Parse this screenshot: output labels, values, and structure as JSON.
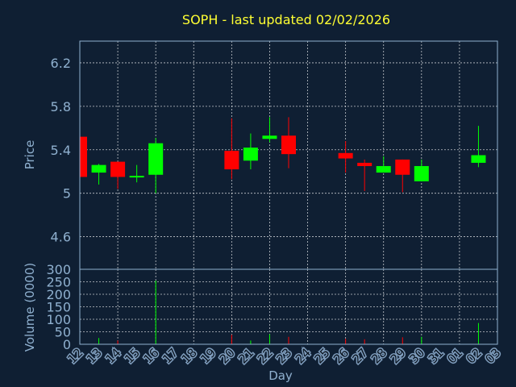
{
  "chart_data": [
    {
      "type": "candlestick",
      "title": "SOPH - last updated 02/02/2026",
      "ylabel": "Price",
      "ylim": [
        4.3,
        6.4
      ],
      "yticks": [
        "4.6",
        "5",
        "5.4",
        "5.8",
        "6.2"
      ],
      "categories": [
        "12",
        "13",
        "14",
        "15",
        "16",
        "17",
        "18",
        "19",
        "20",
        "21",
        "22",
        "23",
        "24",
        "25",
        "26",
        "27",
        "28",
        "29",
        "30",
        "31",
        "01",
        "02",
        "03"
      ],
      "ohlc": [
        {
          "day": "12",
          "open": 5.52,
          "high": 5.52,
          "low": 5.15,
          "close": 5.15
        },
        {
          "day": "13",
          "open": 5.19,
          "high": 5.27,
          "low": 5.08,
          "close": 5.26
        },
        {
          "day": "14",
          "open": 5.29,
          "high": 5.29,
          "low": 5.04,
          "close": 5.15
        },
        {
          "day": "15",
          "open": 5.15,
          "high": 5.26,
          "low": 5.1,
          "close": 5.16
        },
        {
          "day": "16",
          "open": 5.17,
          "high": 5.51,
          "low": 5.0,
          "close": 5.46
        },
        {
          "day": "20",
          "open": 5.39,
          "high": 5.69,
          "low": 5.13,
          "close": 5.22
        },
        {
          "day": "21",
          "open": 5.3,
          "high": 5.55,
          "low": 5.22,
          "close": 5.42
        },
        {
          "day": "22",
          "open": 5.5,
          "high": 5.7,
          "low": 5.47,
          "close": 5.53
        },
        {
          "day": "23",
          "open": 5.53,
          "high": 5.7,
          "low": 5.23,
          "close": 5.36
        },
        {
          "day": "26",
          "open": 5.37,
          "high": 5.48,
          "low": 5.19,
          "close": 5.32
        },
        {
          "day": "27",
          "open": 5.28,
          "high": 5.31,
          "low": 5.02,
          "close": 5.25
        },
        {
          "day": "28",
          "open": 5.19,
          "high": 5.34,
          "low": 5.19,
          "close": 5.25
        },
        {
          "day": "29",
          "open": 5.31,
          "high": 5.31,
          "low": 5.01,
          "close": 5.17
        },
        {
          "day": "30",
          "open": 5.11,
          "high": 5.31,
          "low": 5.11,
          "close": 5.25
        },
        {
          "day": "02",
          "open": 5.28,
          "high": 5.62,
          "low": 5.24,
          "close": 5.35
        }
      ],
      "up_color": "#00ff00",
      "down_color": "#ff0000",
      "grid": true
    },
    {
      "type": "bar",
      "xlabel": "Day",
      "ylabel": "Volume (0000)",
      "ylim": [
        0,
        300
      ],
      "yticks": [
        "0",
        "50",
        "100",
        "150",
        "200",
        "250",
        "300"
      ],
      "volumes": [
        {
          "day": "13",
          "value": 25,
          "color": "#00ff00"
        },
        {
          "day": "14",
          "value": 15,
          "color": "#ff0000"
        },
        {
          "day": "16",
          "value": 255,
          "color": "#00ff00"
        },
        {
          "day": "20",
          "value": 38,
          "color": "#ff0000"
        },
        {
          "day": "21",
          "value": 15,
          "color": "#00ff00"
        },
        {
          "day": "22",
          "value": 40,
          "color": "#00ff00"
        },
        {
          "day": "23",
          "value": 30,
          "color": "#ff0000"
        },
        {
          "day": "26",
          "value": 22,
          "color": "#ff0000"
        },
        {
          "day": "27",
          "value": 20,
          "color": "#ff0000"
        },
        {
          "day": "29",
          "value": 28,
          "color": "#ff0000"
        },
        {
          "day": "30",
          "value": 30,
          "color": "#00ff00"
        },
        {
          "day": "02",
          "value": 85,
          "color": "#00ff00"
        }
      ],
      "grid": true
    }
  ],
  "colors": {
    "background": "#0f1f33",
    "title": "#ffff33",
    "text": "#8fb0cf",
    "grid": "#ffffff",
    "frame": "#8fb0cf"
  }
}
